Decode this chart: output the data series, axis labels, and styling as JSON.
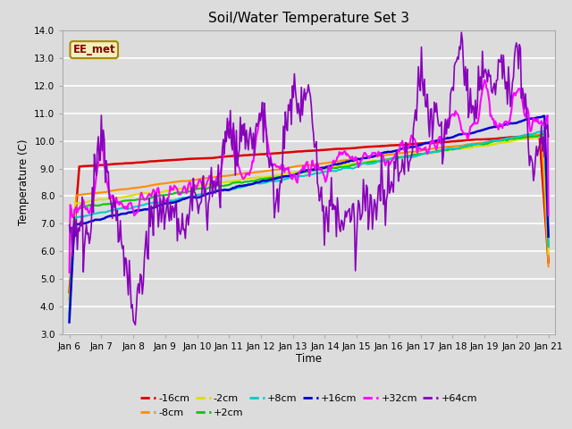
{
  "title": "Soil/Water Temperature Set 3",
  "xlabel": "Time",
  "ylabel": "Temperature (C)",
  "ylim": [
    3.0,
    14.0
  ],
  "yticks": [
    3.0,
    4.0,
    5.0,
    6.0,
    7.0,
    8.0,
    9.0,
    10.0,
    11.0,
    12.0,
    13.0,
    14.0
  ],
  "x_labels": [
    "Jan 6",
    "Jan 7",
    "Jan 8",
    "Jan 9",
    "Jan 10",
    "Jan 11",
    "Jan 12",
    "Jan 13",
    "Jan 14",
    "Jan 15",
    "Jan 16",
    "Jan 17",
    "Jan 18",
    "Jan 19",
    "Jan 20",
    "Jan 21"
  ],
  "annotation": "EE_met",
  "background_color": "#dcdcdc",
  "grid_color": "#ffffff",
  "series": [
    {
      "label": "-16cm",
      "color": "#dd0000",
      "lw": 1.8
    },
    {
      "label": "-8cm",
      "color": "#ff8c00",
      "lw": 1.5
    },
    {
      "label": "-2cm",
      "color": "#dddd00",
      "lw": 1.5
    },
    {
      "label": "+2cm",
      "color": "#00cc00",
      "lw": 1.5
    },
    {
      "label": "+8cm",
      "color": "#00cccc",
      "lw": 1.5
    },
    {
      "label": "+16cm",
      "color": "#0000cc",
      "lw": 1.8
    },
    {
      "label": "+32cm",
      "color": "#ff00ff",
      "lw": 1.5
    },
    {
      "label": "+64cm",
      "color": "#8800bb",
      "lw": 1.2
    }
  ]
}
